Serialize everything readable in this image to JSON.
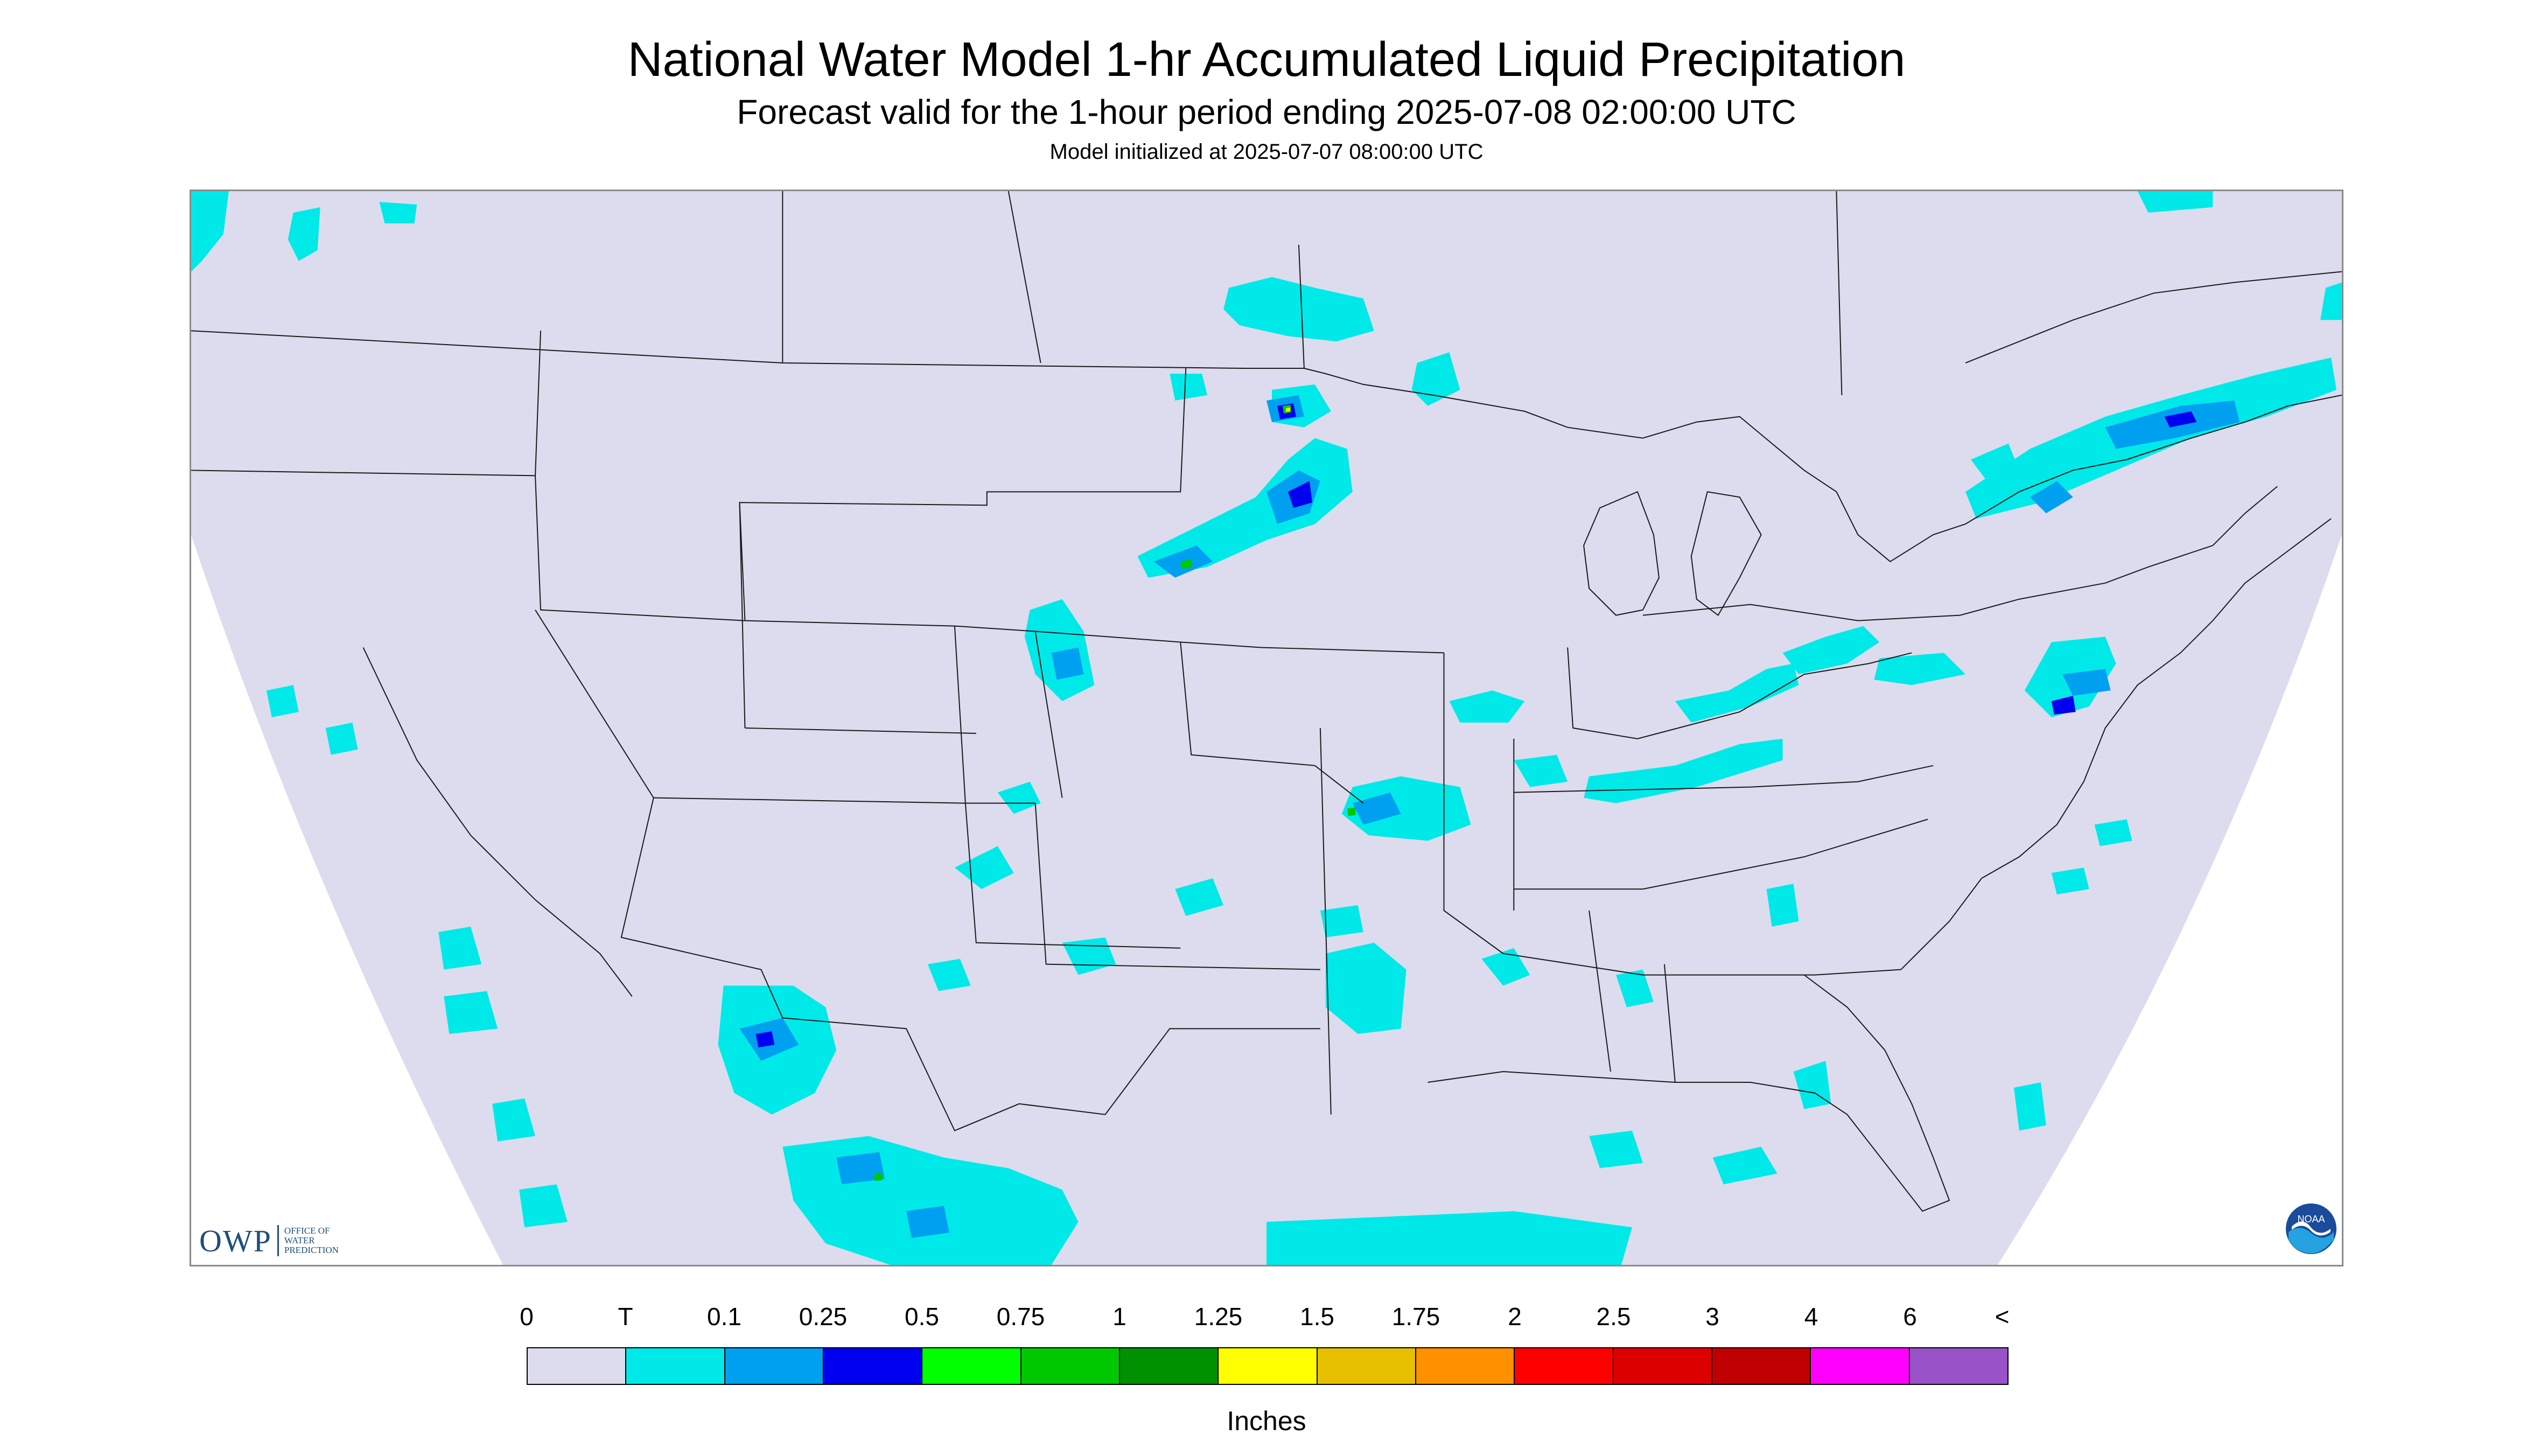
{
  "header": {
    "title": "National Water Model 1-hr Accumulated Liquid Precipitation",
    "subtitle": "Forecast valid for the 1-hour period ending 2025-07-08 02:00:00 UTC",
    "initialized": "Model initialized at 2025-07-07 08:00:00 UTC"
  },
  "logos": {
    "owp_letters": "OWP",
    "owp_lines": [
      "OFFICE OF",
      "WATER",
      "PREDICTION"
    ],
    "noaa_text": "NOAA"
  },
  "legend": {
    "unit": "Inches",
    "labels": [
      "0",
      "T",
      "0.1",
      "0.25",
      "0.5",
      "0.75",
      "1",
      "1.25",
      "1.5",
      "1.75",
      "2",
      "2.5",
      "3",
      "4",
      "6",
      "<"
    ],
    "colors": [
      "#dcdcee",
      "#00e9e9",
      "#00a0f0",
      "#0000f0",
      "#00ff00",
      "#00c800",
      "#009100",
      "#ffff00",
      "#e6c000",
      "#ff9000",
      "#ff0000",
      "#dd0000",
      "#c00000",
      "#ff00ff",
      "#9a52c8"
    ]
  },
  "map_colors": {
    "background": "#dcdcee",
    "outside": "#ffffff",
    "border_lines": "#1a1a1a"
  }
}
